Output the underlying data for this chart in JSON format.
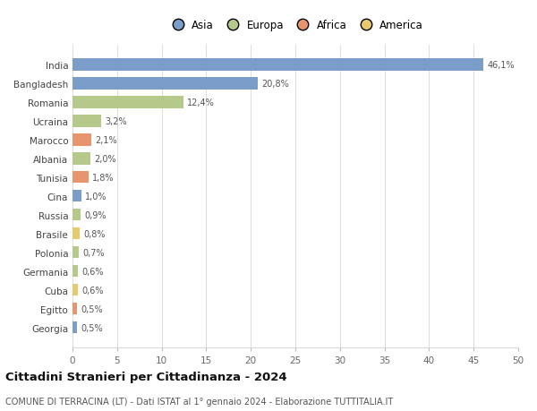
{
  "countries": [
    "India",
    "Bangladesh",
    "Romania",
    "Ucraina",
    "Marocco",
    "Albania",
    "Tunisia",
    "Cina",
    "Russia",
    "Brasile",
    "Polonia",
    "Germania",
    "Cuba",
    "Egitto",
    "Georgia"
  ],
  "values": [
    46.1,
    20.8,
    12.4,
    3.2,
    2.1,
    2.0,
    1.8,
    1.0,
    0.9,
    0.8,
    0.7,
    0.6,
    0.6,
    0.5,
    0.5
  ],
  "labels": [
    "46,1%",
    "20,8%",
    "12,4%",
    "3,2%",
    "2,1%",
    "2,0%",
    "1,8%",
    "1,0%",
    "0,9%",
    "0,8%",
    "0,7%",
    "0,6%",
    "0,6%",
    "0,5%",
    "0,5%"
  ],
  "colors": [
    "#7b9dc9",
    "#7b9dc9",
    "#b5c98a",
    "#b5c98a",
    "#e8956d",
    "#b5c98a",
    "#e8956d",
    "#7b9dc9",
    "#b5c98a",
    "#e8c96d",
    "#b5c98a",
    "#b5c98a",
    "#e8c96d",
    "#e8956d",
    "#7b9dc9"
  ],
  "legend_labels": [
    "Asia",
    "Europa",
    "Africa",
    "America"
  ],
  "legend_colors": [
    "#7b9dc9",
    "#b5c98a",
    "#e8956d",
    "#e8c96d"
  ],
  "title": "Cittadini Stranieri per Cittadinanza - 2024",
  "subtitle": "COMUNE DI TERRACINA (LT) - Dati ISTAT al 1° gennaio 2024 - Elaborazione TUTTITALIA.IT",
  "xlim": [
    0,
    50
  ],
  "xticks": [
    0,
    5,
    10,
    15,
    20,
    25,
    30,
    35,
    40,
    45,
    50
  ],
  "bg_color": "#ffffff",
  "grid_color": "#d8d8d8",
  "bar_height": 0.65
}
